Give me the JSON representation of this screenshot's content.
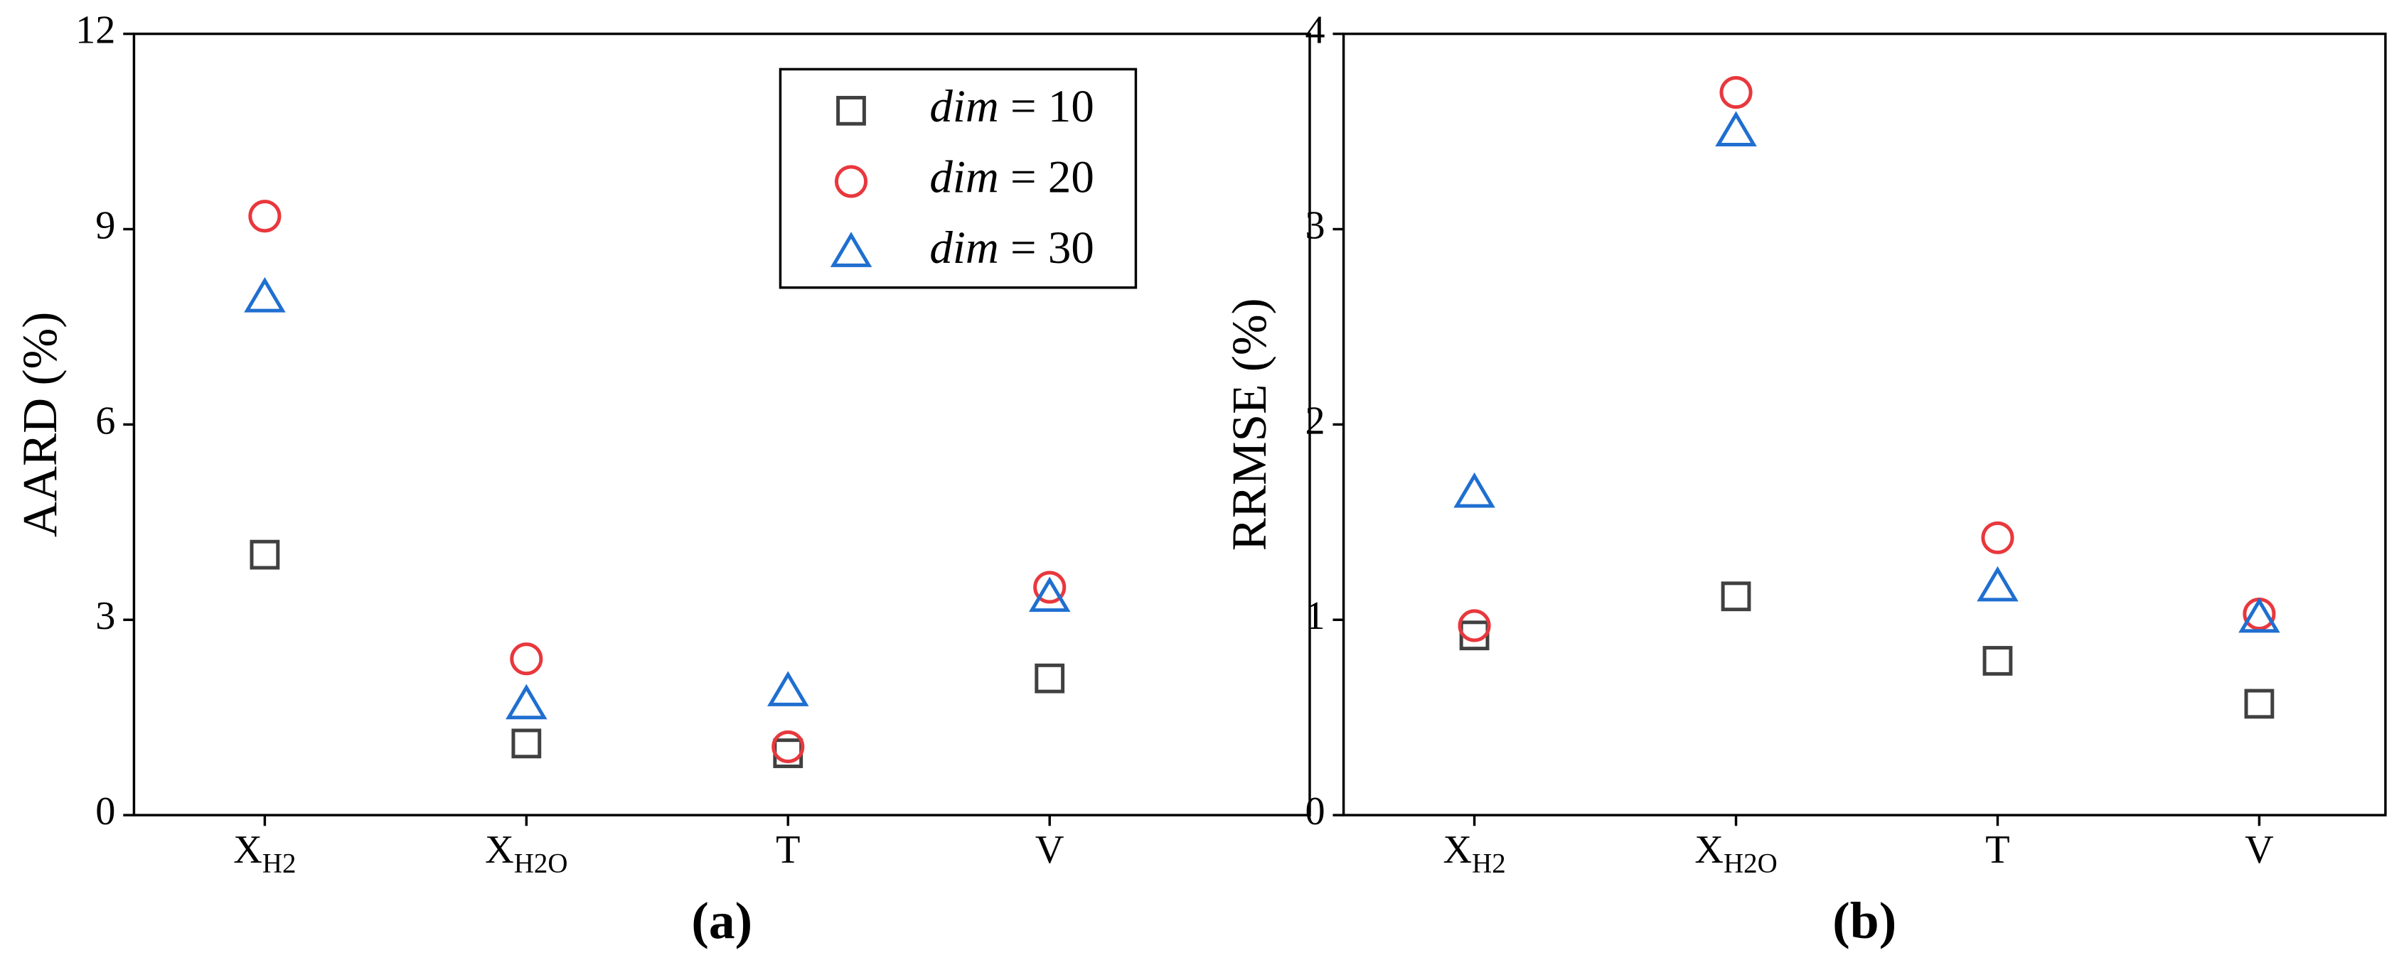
{
  "chart_data": [
    {
      "type": "scatter",
      "label": "(a)",
      "y_label": "AARD (%)",
      "categories": [
        {
          "text": "X",
          "sub": "H2"
        },
        {
          "text": "X",
          "sub": "H2O"
        },
        {
          "text": "T"
        },
        {
          "text": "V"
        }
      ],
      "ylim": [
        0,
        12
      ],
      "yticks": [
        0,
        3,
        6,
        9,
        12
      ],
      "legend": "upper right",
      "series": [
        {
          "name": "dim = 10",
          "color": "#404040",
          "marker": "square",
          "values": [
            4.0,
            1.1,
            0.95,
            2.1
          ]
        },
        {
          "name": "dim = 20",
          "color": "#e8383d",
          "marker": "circle",
          "values": [
            9.2,
            2.4,
            1.05,
            3.5
          ]
        },
        {
          "name": "dim = 30",
          "color": "#1f6fd0",
          "marker": "triangle",
          "values": [
            7.95,
            1.7,
            1.9,
            3.35
          ]
        }
      ]
    },
    {
      "type": "scatter",
      "label": "(b)",
      "y_label": "RRMSE (%)",
      "categories": [
        {
          "text": "X",
          "sub": "H2"
        },
        {
          "text": "X",
          "sub": "H2O"
        },
        {
          "text": "T"
        },
        {
          "text": "V"
        }
      ],
      "ylim": [
        0,
        4
      ],
      "yticks": [
        0,
        1,
        2,
        3,
        4
      ],
      "series": [
        {
          "color": "#404040",
          "marker": "square",
          "values": [
            0.92,
            1.12,
            0.79,
            0.57
          ]
        },
        {
          "color": "#e8383d",
          "marker": "circle",
          "values": [
            0.97,
            3.7,
            1.42,
            1.03
          ]
        },
        {
          "color": "#1f6fd0",
          "marker": "triangle",
          "values": [
            1.65,
            3.5,
            1.17,
            1.01
          ]
        }
      ]
    }
  ]
}
